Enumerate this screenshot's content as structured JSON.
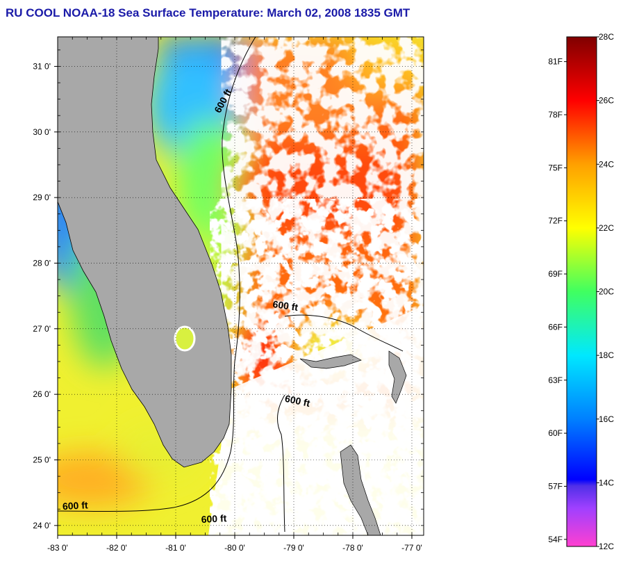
{
  "title": "RU COOL  NOAA-18  Sea Surface Temperature:  March 02, 2008 1835 GMT",
  "map": {
    "lon_range": [
      -83,
      -76.8
    ],
    "lat_range": [
      23.85,
      31.45
    ],
    "lon_ticks": [
      {
        "value": -83,
        "label": "-83 0'"
      },
      {
        "value": -82,
        "label": "-82 0'"
      },
      {
        "value": -81,
        "label": "-81 0'"
      },
      {
        "value": -80,
        "label": "-80 0'"
      },
      {
        "value": -79,
        "label": "-79 0'"
      },
      {
        "value": -78,
        "label": "-78 0'"
      },
      {
        "value": -77,
        "label": "-77 0'"
      }
    ],
    "lat_ticks": [
      {
        "value": 31,
        "label": "31 0'"
      },
      {
        "value": 30,
        "label": "30 0'"
      },
      {
        "value": 29,
        "label": "29 0'"
      },
      {
        "value": 28,
        "label": "28 0'"
      },
      {
        "value": 27,
        "label": "27 0'"
      },
      {
        "value": 26,
        "label": "26 0'"
      },
      {
        "value": 25,
        "label": "25 0'"
      },
      {
        "value": 24,
        "label": "24 0'"
      }
    ],
    "grid": "dotted",
    "depth_labels": [
      {
        "text": "600 ft",
        "lon": -80.15,
        "lat": 30.45,
        "rotate": -62
      },
      {
        "text": "600 ft",
        "lon": -79.15,
        "lat": 27.3,
        "rotate": 8
      },
      {
        "text": "600 ft",
        "lon": -78.95,
        "lat": 25.85,
        "rotate": 12
      },
      {
        "text": "600 ft",
        "lon": -82.7,
        "lat": 24.25,
        "rotate": -3
      },
      {
        "text": "600 ft",
        "lon": -80.35,
        "lat": 24.05,
        "rotate": -3
      }
    ]
  },
  "colorbar": {
    "min_c": 12,
    "max_c": 28,
    "stops": [
      {
        "c": 12,
        "color": "#ff40d0"
      },
      {
        "c": 13.2,
        "color": "#a040ff"
      },
      {
        "c": 13.9,
        "color": "#5030e8"
      },
      {
        "c": 14.1,
        "color": "#0000ff"
      },
      {
        "c": 16,
        "color": "#0080ff"
      },
      {
        "c": 18,
        "color": "#00e8ff"
      },
      {
        "c": 20,
        "color": "#40ff60"
      },
      {
        "c": 22,
        "color": "#ffff00"
      },
      {
        "c": 24,
        "color": "#ffa000"
      },
      {
        "c": 26,
        "color": "#ff0000"
      },
      {
        "c": 28,
        "color": "#800000"
      }
    ],
    "celsius_labels": [
      {
        "value": 12,
        "label": "12C"
      },
      {
        "value": 14,
        "label": "14C"
      },
      {
        "value": 16,
        "label": "16C"
      },
      {
        "value": 18,
        "label": "18C"
      },
      {
        "value": 20,
        "label": "20C"
      },
      {
        "value": 22,
        "label": "22C"
      },
      {
        "value": 24,
        "label": "24C"
      },
      {
        "value": 26,
        "label": "26C"
      },
      {
        "value": 28,
        "label": "28C"
      }
    ],
    "fahrenheit_labels": [
      {
        "value": 54,
        "label": "54F"
      },
      {
        "value": 57,
        "label": "57F"
      },
      {
        "value": 60,
        "label": "60F"
      },
      {
        "value": 63,
        "label": "63F"
      },
      {
        "value": 66,
        "label": "66F"
      },
      {
        "value": 69,
        "label": "69F"
      },
      {
        "value": 72,
        "label": "72F"
      },
      {
        "value": 75,
        "label": "75F"
      },
      {
        "value": 78,
        "label": "78F"
      },
      {
        "value": 81,
        "label": "81F"
      }
    ]
  },
  "colors": {
    "land": "#a8a8a8",
    "cloud": "#ffffff",
    "coast": "#000000",
    "title": "#1a1aa8"
  }
}
